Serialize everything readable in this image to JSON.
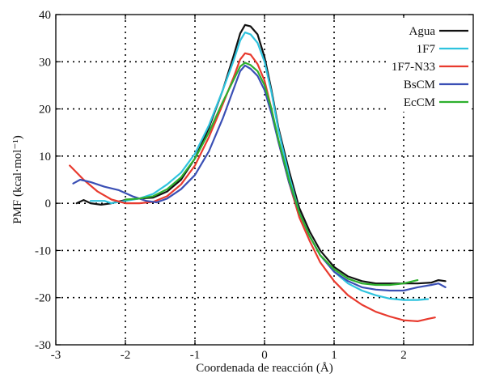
{
  "chart_data": {
    "type": "line",
    "title": "",
    "xlabel": "Coordenada de reacción (Å)",
    "ylabel": "PMF (kcal·mol⁻¹)",
    "xlim": [
      -3,
      3
    ],
    "ylim": [
      -30,
      40
    ],
    "x_ticks": [
      -3,
      -2,
      -1,
      0,
      1,
      2
    ],
    "y_ticks": [
      -30,
      -20,
      -10,
      0,
      10,
      20,
      30,
      40
    ],
    "x_tick_labels": [
      "-3",
      "-2",
      "-1",
      "0",
      "1",
      "2"
    ],
    "y_tick_labels": [
      "-30",
      "-20",
      "-10",
      "0",
      "10",
      "20",
      "30",
      "40"
    ],
    "grid": true,
    "legend_position": "top-right",
    "series": [
      {
        "name": "Agua",
        "color": "#111111",
        "points": [
          [
            -2.7,
            0
          ],
          [
            -2.6,
            0.7
          ],
          [
            -2.5,
            0
          ],
          [
            -2.35,
            -0.3
          ],
          [
            -2.2,
            0
          ],
          [
            -2.0,
            0.7
          ],
          [
            -1.8,
            1
          ],
          [
            -1.6,
            1.2
          ],
          [
            -1.4,
            2.5
          ],
          [
            -1.2,
            5
          ],
          [
            -1.0,
            9.5
          ],
          [
            -0.8,
            16
          ],
          [
            -0.6,
            24
          ],
          [
            -0.45,
            31
          ],
          [
            -0.35,
            36
          ],
          [
            -0.28,
            37.8
          ],
          [
            -0.2,
            37.5
          ],
          [
            -0.1,
            35.8
          ],
          [
            0,
            31
          ],
          [
            0.1,
            24
          ],
          [
            0.2,
            16
          ],
          [
            0.35,
            7
          ],
          [
            0.5,
            -1
          ],
          [
            0.65,
            -6
          ],
          [
            0.8,
            -10
          ],
          [
            1.0,
            -13.5
          ],
          [
            1.2,
            -15.5
          ],
          [
            1.4,
            -16.5
          ],
          [
            1.6,
            -17
          ],
          [
            1.8,
            -17
          ],
          [
            2.0,
            -17
          ],
          [
            2.2,
            -17
          ],
          [
            2.4,
            -16.8
          ],
          [
            2.5,
            -16.3
          ],
          [
            2.6,
            -16.5
          ]
        ]
      },
      {
        "name": "1F7",
        "color": "#2ec3de",
        "points": [
          [
            -2.5,
            0.5
          ],
          [
            -2.3,
            0.5
          ],
          [
            -2.2,
            0
          ],
          [
            -2.0,
            0.5
          ],
          [
            -1.8,
            1
          ],
          [
            -1.6,
            2
          ],
          [
            -1.4,
            4
          ],
          [
            -1.2,
            6.5
          ],
          [
            -1.0,
            10.5
          ],
          [
            -0.8,
            16.5
          ],
          [
            -0.6,
            24
          ],
          [
            -0.45,
            30
          ],
          [
            -0.35,
            34.5
          ],
          [
            -0.28,
            36.2
          ],
          [
            -0.2,
            35.8
          ],
          [
            -0.1,
            34
          ],
          [
            0,
            30
          ],
          [
            0.1,
            23.5
          ],
          [
            0.2,
            15.5
          ],
          [
            0.35,
            6
          ],
          [
            0.5,
            -2
          ],
          [
            0.65,
            -7
          ],
          [
            0.8,
            -11
          ],
          [
            1.0,
            -14.5
          ],
          [
            1.2,
            -17
          ],
          [
            1.4,
            -18.5
          ],
          [
            1.6,
            -19.5
          ],
          [
            1.8,
            -20.2
          ],
          [
            2.0,
            -20.5
          ],
          [
            2.2,
            -20.5
          ],
          [
            2.35,
            -20.3
          ]
        ]
      },
      {
        "name": "1F7-N33",
        "color": "#e83a2e",
        "points": [
          [
            -2.8,
            8
          ],
          [
            -2.6,
            5
          ],
          [
            -2.4,
            2.5
          ],
          [
            -2.2,
            0.8
          ],
          [
            -2.0,
            0
          ],
          [
            -1.8,
            0
          ],
          [
            -1.6,
            0.3
          ],
          [
            -1.4,
            1.5
          ],
          [
            -1.2,
            4
          ],
          [
            -1.0,
            8
          ],
          [
            -0.8,
            14
          ],
          [
            -0.6,
            21
          ],
          [
            -0.45,
            26.5
          ],
          [
            -0.35,
            30.5
          ],
          [
            -0.28,
            31.8
          ],
          [
            -0.2,
            31.5
          ],
          [
            -0.1,
            29.5
          ],
          [
            0,
            26
          ],
          [
            0.1,
            20
          ],
          [
            0.2,
            13
          ],
          [
            0.35,
            4.5
          ],
          [
            0.5,
            -3
          ],
          [
            0.65,
            -8
          ],
          [
            0.8,
            -12.5
          ],
          [
            1.0,
            -16.5
          ],
          [
            1.2,
            -19.5
          ],
          [
            1.4,
            -21.5
          ],
          [
            1.6,
            -23
          ],
          [
            1.8,
            -24
          ],
          [
            2.0,
            -24.8
          ],
          [
            2.2,
            -25
          ],
          [
            2.35,
            -24.5
          ],
          [
            2.45,
            -24.2
          ]
        ]
      },
      {
        "name": "BsCM",
        "color": "#3a4fb5",
        "points": [
          [
            -2.75,
            4.2
          ],
          [
            -2.65,
            5
          ],
          [
            -2.5,
            4.5
          ],
          [
            -2.3,
            3.5
          ],
          [
            -2.1,
            2.8
          ],
          [
            -1.9,
            1.5
          ],
          [
            -1.7,
            0.5
          ],
          [
            -1.55,
            0.2
          ],
          [
            -1.4,
            1
          ],
          [
            -1.2,
            3
          ],
          [
            -1.0,
            6
          ],
          [
            -0.8,
            11
          ],
          [
            -0.6,
            18
          ],
          [
            -0.45,
            24
          ],
          [
            -0.35,
            28
          ],
          [
            -0.28,
            29.2
          ],
          [
            -0.2,
            28.5
          ],
          [
            -0.1,
            27
          ],
          [
            0,
            24
          ],
          [
            0.1,
            19
          ],
          [
            0.2,
            13
          ],
          [
            0.35,
            4.5
          ],
          [
            0.5,
            -2
          ],
          [
            0.65,
            -7
          ],
          [
            0.8,
            -11
          ],
          [
            1.0,
            -14.5
          ],
          [
            1.2,
            -16.5
          ],
          [
            1.4,
            -17.8
          ],
          [
            1.6,
            -18.3
          ],
          [
            1.8,
            -18.5
          ],
          [
            2.0,
            -18.5
          ],
          [
            2.2,
            -17.8
          ],
          [
            2.4,
            -17.3
          ],
          [
            2.5,
            -17
          ],
          [
            2.6,
            -17.8
          ]
        ]
      },
      {
        "name": "EcCM",
        "color": "#2db02d",
        "points": [
          [
            -2.0,
            0.8
          ],
          [
            -1.8,
            1
          ],
          [
            -1.6,
            1.5
          ],
          [
            -1.4,
            3
          ],
          [
            -1.2,
            5.5
          ],
          [
            -1.0,
            9.5
          ],
          [
            -0.8,
            15
          ],
          [
            -0.6,
            21.5
          ],
          [
            -0.45,
            26
          ],
          [
            -0.35,
            29
          ],
          [
            -0.28,
            29.8
          ],
          [
            -0.2,
            29.3
          ],
          [
            -0.1,
            28
          ],
          [
            0,
            25
          ],
          [
            0.1,
            20
          ],
          [
            0.2,
            13.5
          ],
          [
            0.35,
            5
          ],
          [
            0.5,
            -2
          ],
          [
            0.65,
            -7
          ],
          [
            0.8,
            -11
          ],
          [
            1.0,
            -14
          ],
          [
            1.2,
            -16
          ],
          [
            1.4,
            -17
          ],
          [
            1.6,
            -17.3
          ],
          [
            1.8,
            -17.3
          ],
          [
            2.0,
            -17
          ],
          [
            2.2,
            -16.3
          ]
        ]
      }
    ]
  }
}
